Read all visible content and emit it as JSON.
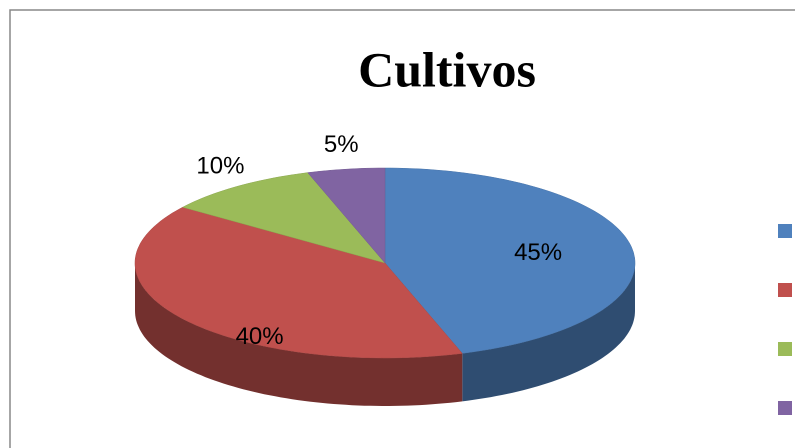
{
  "chart_data": {
    "type": "pie",
    "title": "Cultivos",
    "values": [
      45,
      40,
      10,
      5
    ],
    "value_labels": [
      "45%",
      "40%",
      "10%",
      "5%"
    ],
    "colors": [
      "#4f81bd",
      "#c0504d",
      "#9bbb59",
      "#8064a2"
    ]
  }
}
